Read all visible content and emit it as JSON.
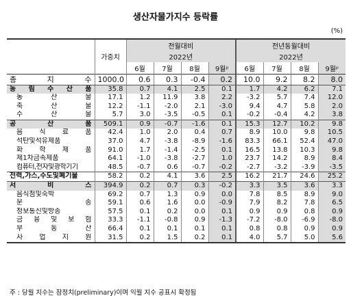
{
  "title": "생산자물가지수 등락률",
  "unit": "(%)",
  "header": {
    "weight": "가중치",
    "group1": "전월대비",
    "group2": "전년동월대비",
    "year": "2022년",
    "months": [
      "6월",
      "7월",
      "8월",
      "9월ᵖ"
    ]
  },
  "rows": [
    {
      "label": "총 지 수",
      "weight": "1000.0",
      "mom": [
        "0.6",
        "0.3",
        "-0.4",
        "0.2"
      ],
      "yoy": [
        "10.0",
        "9.2",
        "8.2",
        "8.0"
      ]
    },
    {
      "label": "농 림 수 산 품",
      "weight": "35.8",
      "mom": [
        "0.7",
        "4.1",
        "2.5",
        "0.1"
      ],
      "yoy": [
        "1.7",
        "4.2",
        "6.2",
        "7.1"
      ]
    },
    {
      "label": "농 산 물",
      "weight": "17.1",
      "mom": [
        "1.2",
        "11.9",
        "3.8",
        "2.2"
      ],
      "yoy": [
        "-3.2",
        "5.7",
        "7.4",
        "12.0"
      ]
    },
    {
      "label": "축 산 물",
      "weight": "12.2",
      "mom": [
        "-1.1",
        "-2.0",
        "2.1",
        "-3.0"
      ],
      "yoy": [
        "9.4",
        "4.7",
        "5.8",
        "2.0"
      ]
    },
    {
      "label": "수 산 물",
      "weight": "5.7",
      "mom": [
        "3.0",
        "-3.5",
        "-0.5",
        "0.1"
      ],
      "yoy": [
        "-0.2",
        "-0.4",
        "4.2",
        "3.8"
      ]
    },
    {
      "label": "공 산 품",
      "weight": "509.1",
      "mom": [
        "0.9",
        "-0.7",
        "-1.6",
        "0.1"
      ],
      "yoy": [
        "15.3",
        "12.7",
        "10.2",
        "9.8"
      ]
    },
    {
      "label": "음 식 료 품",
      "weight": "42.4",
      "mom": [
        "1.0",
        "2.0",
        "0.4",
        "0.7"
      ],
      "yoy": [
        "8.9",
        "10.0",
        "9.8",
        "10.5"
      ]
    },
    {
      "label": "석탄및석유제품",
      "weight": "37.0",
      "mom": [
        "4.7",
        "-3.8",
        "-8.9",
        "-1.6"
      ],
      "yoy": [
        "83.3",
        "66.1",
        "52.4",
        "47.0"
      ]
    },
    {
      "label": "화 학 제 품",
      "weight": "91.0",
      "mom": [
        "1.7",
        "-1.4",
        "-2.5",
        "0.1"
      ],
      "yoy": [
        "16.5",
        "13.8",
        "10.3",
        "9.8"
      ]
    },
    {
      "label": "제1차금속제품",
      "weight": "64.1",
      "mom": [
        "-1.0",
        "-3.8",
        "-2.7",
        "1.0"
      ],
      "yoy": [
        "23.7",
        "14.2",
        "8.9",
        "8.4"
      ]
    },
    {
      "label": "컴퓨터,전자및광학기기",
      "weight": "48.5",
      "mom": [
        "-0.7",
        "0.6",
        "-0.7",
        "-0.2"
      ],
      "yoy": [
        "-2.7",
        "-3.2",
        "-3.9",
        "-3.5"
      ]
    },
    {
      "label": "전력,가스,수도및폐기물",
      "weight": "58.2",
      "mom": [
        "0.2",
        "4.1",
        "3.6",
        "2.5"
      ],
      "yoy": [
        "16.2",
        "21.7",
        "24.6",
        "25.2"
      ]
    },
    {
      "label": "서 비 스",
      "weight": "394.9",
      "mom": [
        "0.2",
        "0.7",
        "0.3",
        "-0.2"
      ],
      "yoy": [
        "3.3",
        "3.5",
        "3.6",
        "3.3"
      ]
    },
    {
      "label": "음식점및숙박",
      "weight": "69.2",
      "mom": [
        "0.7",
        "1.3",
        "0.9",
        "0.0"
      ],
      "yoy": [
        "7.8",
        "8.5",
        "8.9",
        "9.0"
      ]
    },
    {
      "label": "운 송",
      "weight": "59.1",
      "mom": [
        "0.6",
        "1.6",
        "0.0",
        "-0.9"
      ],
      "yoy": [
        "7.9",
        "8.2",
        "7.8",
        "6.5"
      ]
    },
    {
      "label": "정보통신및방송",
      "weight": "57.5",
      "mom": [
        "0.1",
        "0.2",
        "0.0",
        "0.1"
      ],
      "yoy": [
        "0.9",
        "0.9",
        "0.8",
        "0.9"
      ]
    },
    {
      "label": "금 융 및 보 험",
      "weight": "33.3",
      "mom": [
        "-1.1",
        "-0.8",
        "0.9",
        "-1.3"
      ],
      "yoy": [
        "-7.2",
        "-8.0",
        "-6.9",
        "-8.0"
      ]
    },
    {
      "label": "부 동 산",
      "weight": "66.4",
      "mom": [
        "0.1",
        "0.1",
        "0.1",
        "0.1"
      ],
      "yoy": [
        "0.8",
        "0.8",
        "0.9",
        "0.9"
      ]
    },
    {
      "label": "사 업 지 원",
      "weight": "31.5",
      "mom": [
        "0.2",
        "1.5",
        "0.2",
        "0.1"
      ],
      "yoy": [
        "4.0",
        "5.7",
        "5.0",
        "5.6"
      ]
    }
  ],
  "note": "주 : 당월 지수는 잠정치(preliminary)이며 익월 지수 공표시 확정됨"
}
